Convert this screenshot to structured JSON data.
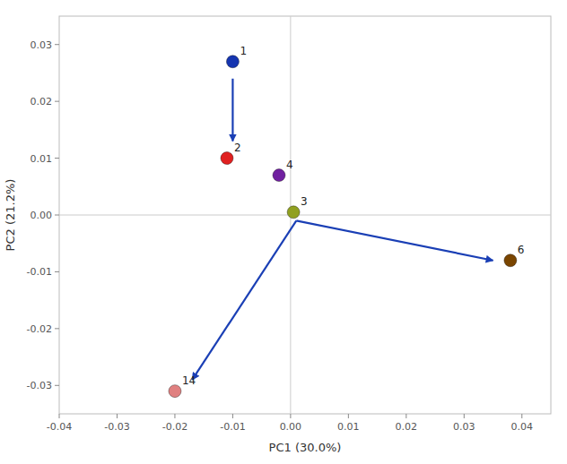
{
  "chart_data": {
    "type": "scatter",
    "xlabel": "PC1 (30.0%)",
    "ylabel": "PC2 (21.2%)",
    "xlim": [
      -0.04,
      0.045
    ],
    "ylim": [
      -0.035,
      0.035
    ],
    "xticks": [
      -0.04,
      -0.03,
      -0.02,
      -0.01,
      {
        "value": 0,
        "label": "0.00"
      },
      0.01,
      0.02,
      0.03,
      0.04
    ],
    "yticks": [
      -0.03,
      -0.02,
      -0.01,
      {
        "value": 0,
        "label": "0.00"
      },
      0.01,
      0.02,
      0.03
    ],
    "grid": false,
    "labels": [
      "1",
      "2",
      "3",
      "4",
      "6",
      "14"
    ],
    "x": [
      -0.01,
      -0.011,
      0.0005,
      -0.002,
      0.038,
      -0.02
    ],
    "values": [
      0.027,
      0.01,
      0.0005,
      0.007,
      -0.008,
      -0.031
    ],
    "colors": [
      "#1535b0",
      "#e02020",
      "#90a020",
      "#7020a0",
      "#7a4500",
      "#e08080"
    ],
    "arrows": [
      {
        "x_start": -0.01,
        "y_start": 0.024,
        "x_end": -0.01,
        "y_end": 0.013
      },
      {
        "x_start": 0.001,
        "y_start": -0.001,
        "x_end": 0.035,
        "y_end": -0.008
      },
      {
        "x_start": 0.001,
        "y_start": -0.001,
        "x_end": -0.017,
        "y_end": -0.029
      }
    ],
    "arrow_color": "#1a3fb5",
    "reference_lines": {
      "x": 0,
      "y": 0
    }
  }
}
